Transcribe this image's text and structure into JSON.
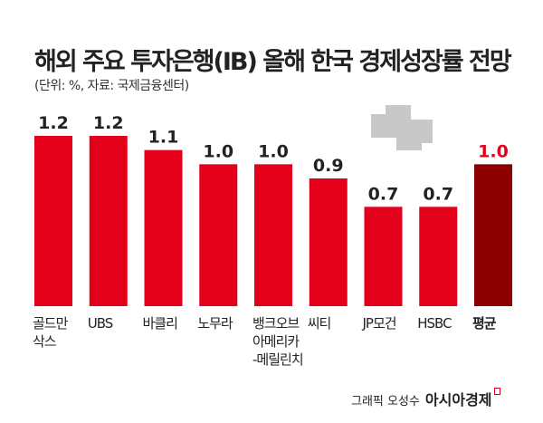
{
  "title": "해외 주요 투자은행(IB) 올해 한국 경제성장률 전망",
  "subtitle": "(단위: %, 자료: 국제금융센터)",
  "credit": {
    "text": "그래픽 오성수",
    "brand": "아시아경제"
  },
  "colors": {
    "bar": "#e2001a",
    "average_bar": "#8b0000",
    "average_label": "#e2001a",
    "text": "#222222",
    "icon": "#c8c8c8"
  },
  "icon": "money-stack-icon",
  "chart_data": {
    "type": "bar",
    "title": "해외 주요 투자은행(IB) 올해 한국 경제성장률 전망",
    "categories": [
      "골드만\n삭스",
      "UBS",
      "바클리",
      "노무라",
      "뱅크오브\n아메리카\n-메릴린치",
      "씨티",
      "JP모건",
      "HSBC",
      "평균"
    ],
    "values": [
      1.2,
      1.2,
      1.1,
      1.0,
      1.0,
      0.9,
      0.7,
      0.7,
      1.0
    ],
    "value_labels": [
      "1.2",
      "1.2",
      "1.1",
      "1.0",
      "1.0",
      "0.9",
      "0.7",
      "0.7",
      "1.0"
    ],
    "ylim": [
      0,
      1.2
    ],
    "grid": false,
    "highlight": "평균"
  }
}
